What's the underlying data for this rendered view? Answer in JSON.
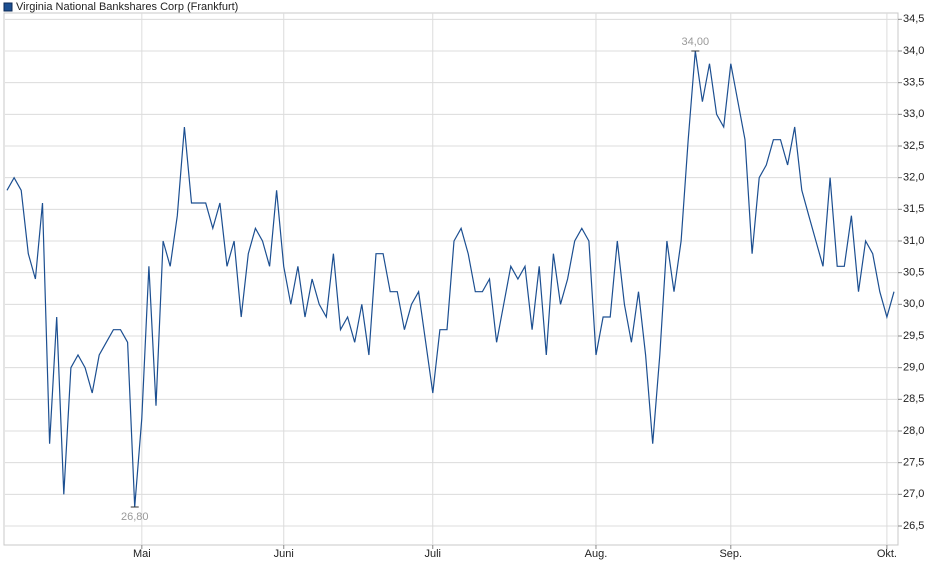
{
  "chart_data": {
    "type": "line",
    "title": "Virginia National Bankshares Corp (Frankfurt)",
    "categories": [
      null,
      null,
      null,
      null,
      null,
      null,
      null,
      null,
      null,
      null,
      null,
      null,
      null,
      null,
      null,
      null,
      null,
      null,
      null,
      "Mai",
      null,
      null,
      null,
      null,
      null,
      null,
      null,
      null,
      null,
      null,
      null,
      null,
      null,
      null,
      null,
      null,
      null,
      null,
      null,
      "Juni",
      null,
      null,
      null,
      null,
      null,
      null,
      null,
      null,
      null,
      null,
      null,
      null,
      null,
      null,
      null,
      null,
      null,
      null,
      null,
      null,
      "Juli",
      null,
      null,
      null,
      null,
      null,
      null,
      null,
      null,
      null,
      null,
      null,
      null,
      null,
      null,
      null,
      null,
      null,
      null,
      null,
      null,
      null,
      null,
      "Aug.",
      null,
      null,
      null,
      null,
      null,
      null,
      null,
      null,
      null,
      null,
      null,
      null,
      null,
      null,
      null,
      null,
      null,
      null,
      "Sep.",
      null,
      null,
      null,
      null,
      null,
      null,
      null,
      null,
      null,
      null,
      null,
      null,
      null,
      null,
      null,
      null,
      null,
      null,
      null,
      null,
      null,
      "Okt.",
      null
    ],
    "series": [
      {
        "name": "Virginia National Bankshares Corp (Frankfurt)",
        "color": "#1c4f91",
        "values": [
          31.8,
          32.0,
          31.8,
          30.8,
          30.4,
          31.6,
          27.8,
          29.8,
          27.0,
          29.0,
          29.2,
          29.0,
          28.6,
          29.2,
          29.4,
          29.6,
          29.6,
          29.4,
          26.8,
          28.2,
          30.6,
          28.4,
          31.0,
          30.6,
          31.4,
          32.8,
          31.6,
          31.6,
          31.6,
          31.2,
          31.6,
          30.6,
          31.0,
          29.8,
          30.8,
          31.2,
          31.0,
          30.6,
          31.8,
          30.6,
          30.0,
          30.6,
          29.8,
          30.4,
          30.0,
          29.8,
          30.8,
          29.6,
          29.8,
          29.4,
          30.0,
          29.2,
          30.8,
          30.8,
          30.2,
          30.2,
          29.6,
          30.0,
          30.2,
          29.4,
          28.6,
          29.6,
          29.6,
          31.0,
          31.2,
          30.8,
          30.2,
          30.2,
          30.4,
          29.4,
          30.0,
          30.6,
          30.4,
          30.6,
          29.6,
          30.6,
          29.2,
          30.8,
          30.0,
          30.4,
          31.0,
          31.2,
          31.0,
          29.2,
          29.8,
          29.8,
          31.0,
          30.0,
          29.4,
          30.2,
          29.2,
          27.8,
          29.2,
          31.0,
          30.2,
          31.0,
          32.6,
          34.0,
          33.2,
          33.8,
          33.0,
          32.8,
          33.8,
          33.2,
          32.6,
          30.8,
          32.0,
          32.2,
          32.6,
          32.6,
          32.2,
          32.8,
          31.8,
          31.4,
          31.0,
          30.6,
          32.0,
          30.6,
          30.6,
          31.4,
          30.2,
          31.0,
          30.8,
          30.2,
          29.8,
          30.2
        ]
      }
    ],
    "max_label": "34,00",
    "min_label": "26,80",
    "ylim": [
      26.2,
      34.6
    ],
    "yticks": [
      {
        "value": 26.5,
        "label": "26,5"
      },
      {
        "value": 27,
        "label": "27,0"
      },
      {
        "value": 27.5,
        "label": "27,5"
      },
      {
        "value": 28,
        "label": "28,0"
      },
      {
        "value": 28.5,
        "label": "28,5"
      },
      {
        "value": 29,
        "label": "29,0"
      },
      {
        "value": 29.5,
        "label": "29,5"
      },
      {
        "value": 30,
        "label": "30,0"
      },
      {
        "value": 30.5,
        "label": "30,5"
      },
      {
        "value": 31,
        "label": "31,0"
      },
      {
        "value": 31.5,
        "label": "31,5"
      },
      {
        "value": 32,
        "label": "32,0"
      },
      {
        "value": 32.5,
        "label": "32,5"
      },
      {
        "value": 33,
        "label": "33,0"
      },
      {
        "value": 33.5,
        "label": "33,5"
      },
      {
        "value": 34,
        "label": "34,0"
      },
      {
        "value": 34.5,
        "label": "34,5"
      }
    ],
    "grid": true
  }
}
